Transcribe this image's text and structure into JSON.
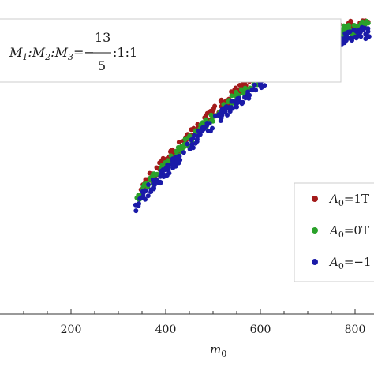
{
  "chart_data": {
    "type": "scatter",
    "xlabel": "m",
    "xlabel_sub": "0",
    "xlim": [
      50,
      840
    ],
    "x_ticks": [
      200,
      400,
      600,
      800
    ],
    "x_tick_labels": [
      "200",
      "400",
      "600",
      "800"
    ],
    "y_scale": "unlabeled",
    "annotation": {
      "text": "M1:M2:M3=−13/5:1:1",
      "p1": "M",
      "p1_sub": "1",
      "p2": ":M",
      "p2_sub": "2",
      "p3": ":M",
      "p3_sub": "3",
      "p4": "=−",
      "frac_num": "13",
      "frac_den": "5",
      "p5": ":1:1"
    },
    "legend": {
      "placement": "right",
      "entries": [
        {
          "prefix": "A",
          "sub": "0",
          "suffix": "=1T",
          "color": "#a31a1a"
        },
        {
          "prefix": "A",
          "sub": "0",
          "suffix": "=0T",
          "color": "#2aa12a"
        },
        {
          "prefix": "A",
          "sub": "0",
          "suffix": "=−1",
          "color": "#1a1aa8"
        }
      ]
    },
    "series": [
      {
        "color": "#a31a1a",
        "x_range": [
          345,
          830
        ],
        "band_offset": -0.03,
        "spread": 0.03
      },
      {
        "color": "#2aa12a",
        "x_range": [
          338,
          830
        ],
        "band_offset": -0.005,
        "spread": 0.032
      },
      {
        "color": "#1a1aa8",
        "x_range": [
          335,
          830
        ],
        "band_offset": 0.03,
        "spread": 0.036
      }
    ]
  }
}
